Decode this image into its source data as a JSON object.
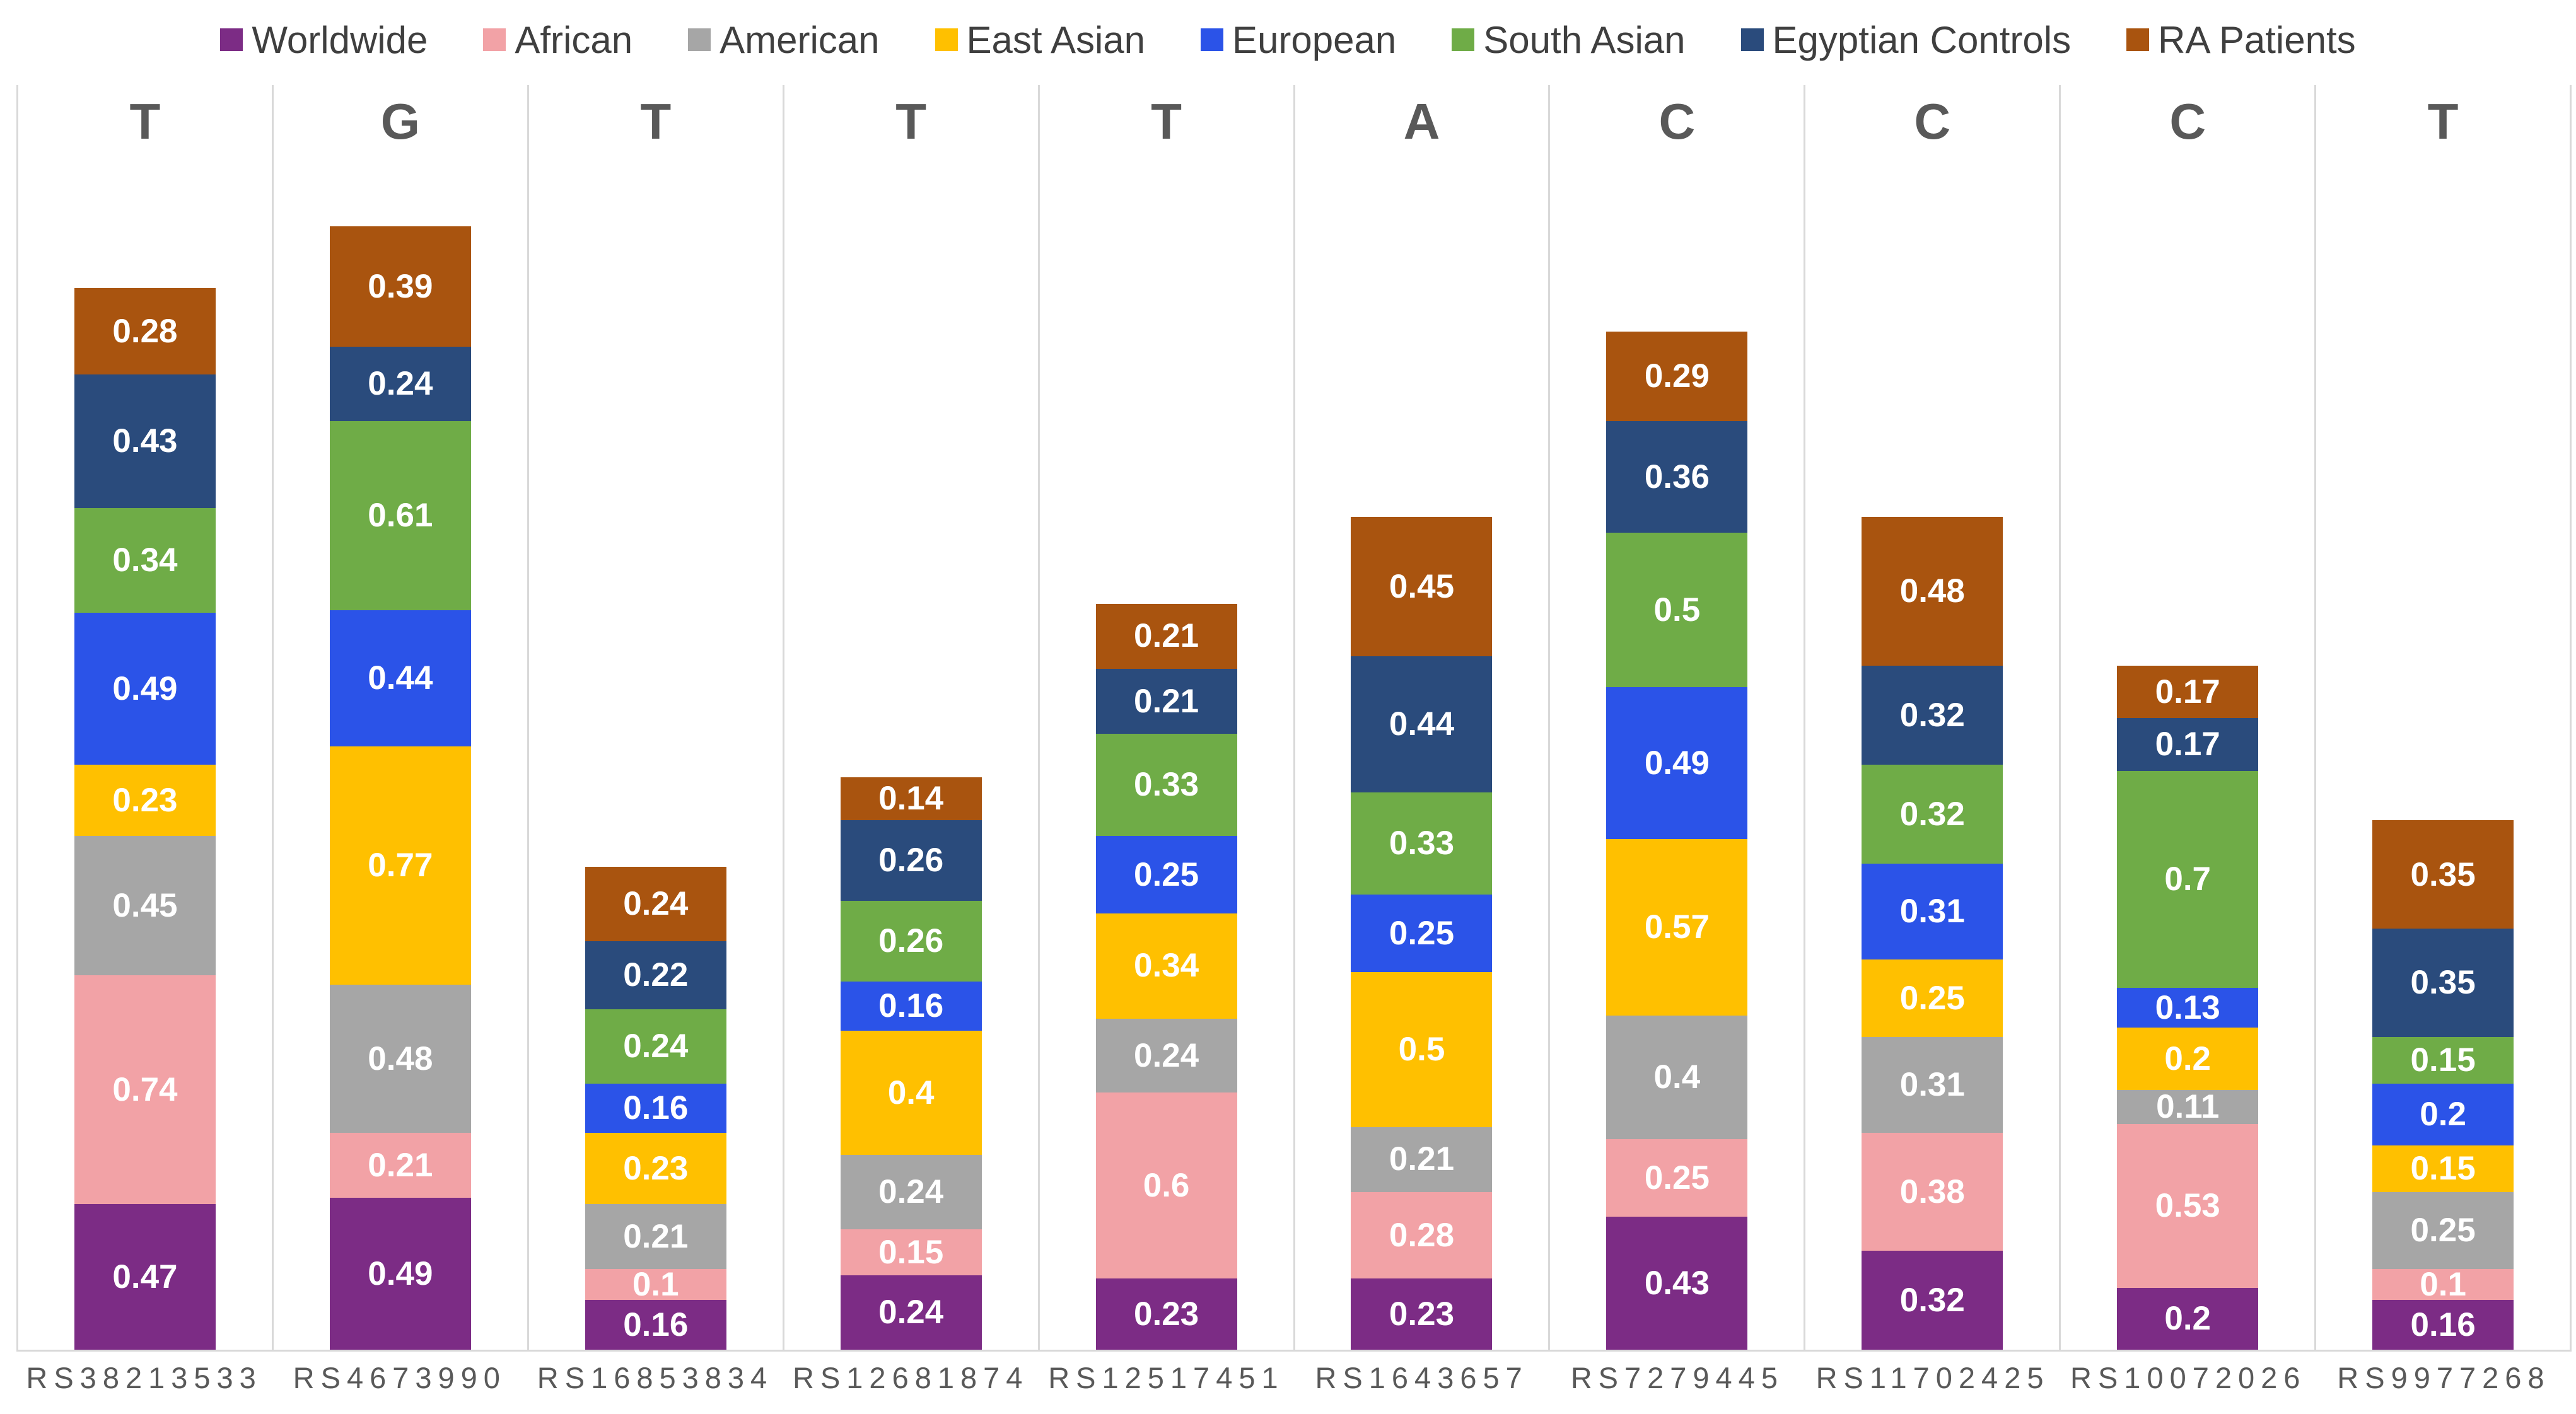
{
  "legend": [
    {
      "label": "Worldwide",
      "color": "#7C2C85"
    },
    {
      "label": "African",
      "color": "#F2A2A6"
    },
    {
      "label": "American",
      "color": "#A6A6A6"
    },
    {
      "label": "East Asian",
      "color": "#FFC000"
    },
    {
      "label": "European",
      "color": "#2B53E8"
    },
    {
      "label": "South Asian",
      "color": "#6FAC47"
    },
    {
      "label": "Egyptian Controls",
      "color": "#2A4B7C"
    },
    {
      "label": "RA Patients",
      "color": "#A9540F"
    }
  ],
  "chart_data": {
    "type": "bar",
    "stacked": true,
    "grid": "vertical-separators",
    "legend_position": "top",
    "categories": [
      "RS38213533",
      "RS4673990",
      "RS16853834",
      "RS12681874",
      "RS12517451",
      "RS1643657",
      "RS7279445",
      "RS11702425",
      "RS10072026",
      "RS9977268"
    ],
    "alleles": [
      "T",
      "G",
      "T",
      "T",
      "T",
      "A",
      "C",
      "C",
      "C",
      "T"
    ],
    "series": [
      {
        "name": "Worldwide",
        "color": "#7C2C85",
        "values": [
          0.47,
          0.49,
          0.16,
          0.24,
          0.23,
          0.23,
          0.43,
          0.32,
          0.2,
          0.16
        ]
      },
      {
        "name": "African",
        "color": "#F2A2A6",
        "values": [
          0.74,
          0.21,
          0.1,
          0.15,
          0.6,
          0.28,
          0.25,
          0.38,
          0.53,
          0.1
        ]
      },
      {
        "name": "American",
        "color": "#A6A6A6",
        "values": [
          0.45,
          0.48,
          0.21,
          0.24,
          0.24,
          0.21,
          0.4,
          0.31,
          0.11,
          0.25
        ]
      },
      {
        "name": "East Asian",
        "color": "#FFC000",
        "values": [
          0.23,
          0.77,
          0.23,
          0.4,
          0.34,
          0.5,
          0.57,
          0.25,
          0.2,
          0.15
        ]
      },
      {
        "name": "European",
        "color": "#2B53E8",
        "values": [
          0.49,
          0.44,
          0.16,
          0.16,
          0.25,
          0.25,
          0.49,
          0.31,
          0.13,
          0.2
        ]
      },
      {
        "name": "South Asian",
        "color": "#6FAC47",
        "values": [
          0.34,
          0.61,
          0.24,
          0.26,
          0.33,
          0.33,
          0.5,
          0.32,
          0.7,
          0.15
        ]
      },
      {
        "name": "Egyptian Controls",
        "color": "#2A4B7C",
        "values": [
          0.43,
          0.24,
          0.22,
          0.26,
          0.21,
          0.44,
          0.36,
          0.32,
          0.17,
          0.35
        ]
      },
      {
        "name": "RA Patients",
        "color": "#A9540F",
        "values": [
          0.28,
          0.39,
          0.24,
          0.14,
          0.21,
          0.45,
          0.29,
          0.48,
          0.17,
          0.35
        ]
      }
    ]
  }
}
